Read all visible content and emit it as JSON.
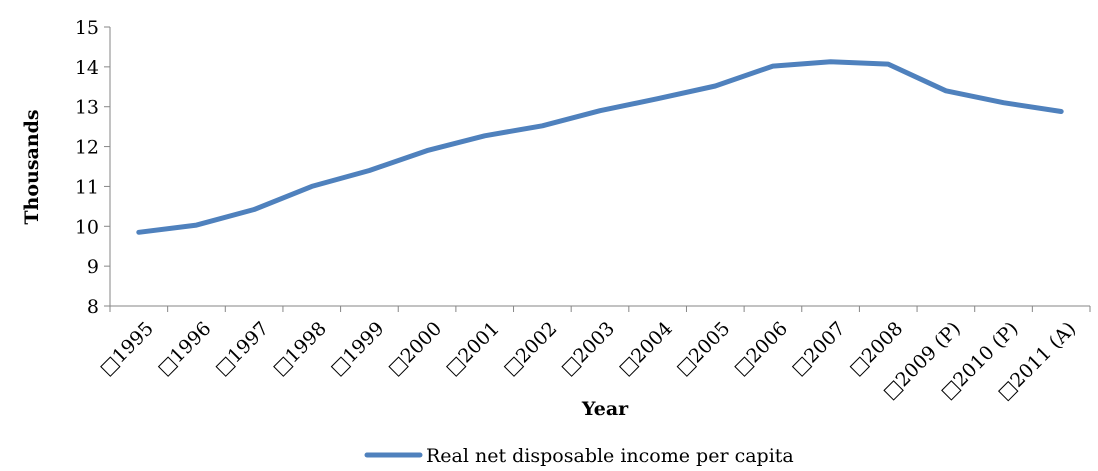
{
  "chart_data": {
    "type": "line",
    "categories": [
      "□1995",
      "□1996",
      "□1997",
      "□1998",
      "□1999",
      "□2000",
      "□2001",
      "□2002",
      "□2003",
      "□2004",
      "□2005",
      "□2006",
      "□2007",
      "□2008",
      "□2009 (P)",
      "□2010 (P)",
      "□2011 (A)"
    ],
    "series": [
      {
        "name": "Real net disposable income per capita",
        "values": [
          9.85,
          10.03,
          10.42,
          11.0,
          11.4,
          11.9,
          12.27,
          12.52,
          12.9,
          13.2,
          13.52,
          14.02,
          14.13,
          14.07,
          13.4,
          13.1,
          12.88
        ],
        "color": "#4f81bd"
      }
    ],
    "xlabel": "Year",
    "ylabel": "Thousands",
    "ylim": [
      8,
      15
    ],
    "yticks": [
      8,
      9,
      10,
      11,
      12,
      13,
      14,
      15
    ],
    "grid": false,
    "legend_position": "bottom"
  }
}
